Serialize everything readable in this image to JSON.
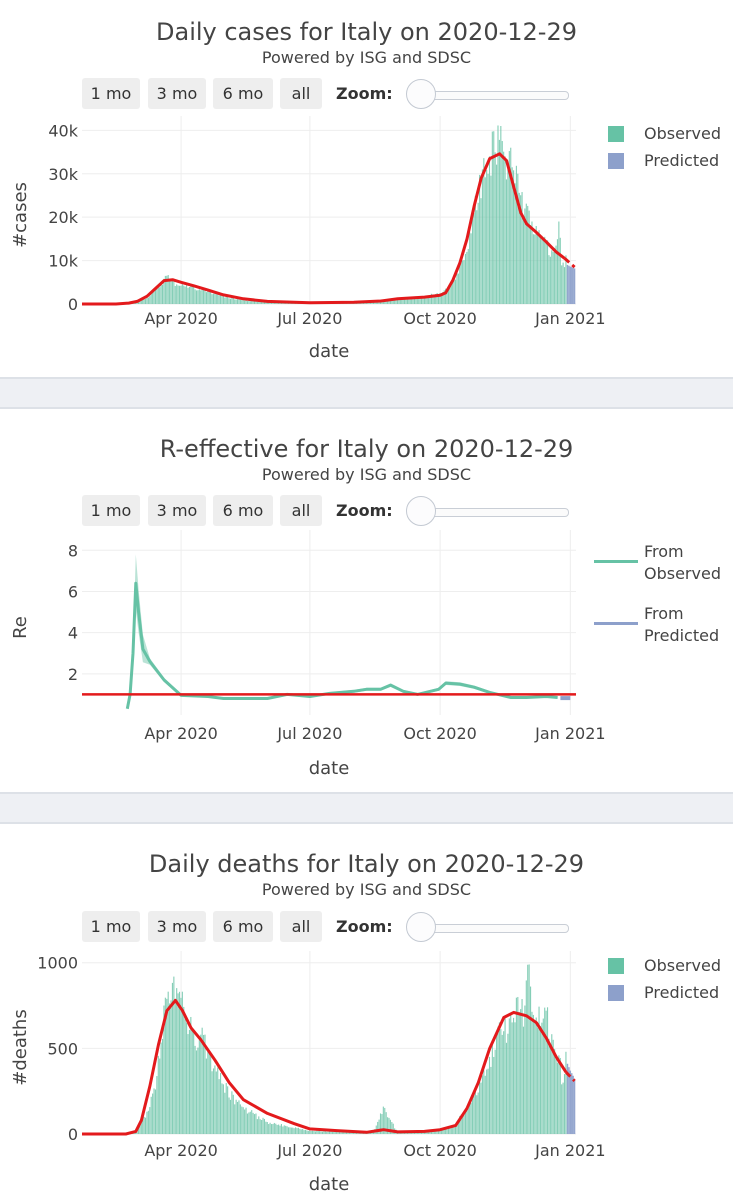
{
  "rangeselector": {
    "buttons": [
      "1 mo",
      "3 mo",
      "6 mo",
      "all"
    ],
    "zoom_label": "Zoom:"
  },
  "colors": {
    "observed": "#66c2a5",
    "predicted": "#8da0cb",
    "fit_line": "#e31a1c",
    "grid": "#eeeeee",
    "baseline": "#e31a1c"
  },
  "panels": [
    {
      "title": "Daily cases for Italy on 2020-12-29",
      "subtitle": "Powered by ISG and SDSC",
      "legend": [
        "Observed",
        "Predicted"
      ],
      "chart_data": {
        "type": "bar",
        "xlabel": "date",
        "ylabel": "#cases",
        "x_tick_labels": [
          "Apr 2020",
          "Jul 2020",
          "Oct 2020",
          "Jan 2021"
        ],
        "x_ticks": [
          "2020-04-01",
          "2020-07-01",
          "2020-10-01",
          "2021-01-01"
        ],
        "y_tick_labels": [
          "0",
          "10k",
          "20k",
          "30k",
          "40k"
        ],
        "y_ticks": [
          0,
          10000,
          20000,
          30000,
          40000
        ],
        "ylim": [
          0,
          41000
        ],
        "x_range": [
          "2020-01-22",
          "2021-01-05"
        ],
        "observed_end": "2020-12-29",
        "observed": [
          [
            "2020-02-20",
            0
          ],
          [
            "2020-03-01",
            500
          ],
          [
            "2020-03-10",
            1800
          ],
          [
            "2020-03-15",
            3500
          ],
          [
            "2020-03-20",
            5800
          ],
          [
            "2020-03-22",
            6500
          ],
          [
            "2020-03-25",
            5500
          ],
          [
            "2020-03-31",
            4200
          ],
          [
            "2020-04-10",
            4000
          ],
          [
            "2020-04-20",
            3000
          ],
          [
            "2020-05-01",
            1800
          ],
          [
            "2020-05-15",
            900
          ],
          [
            "2020-06-01",
            400
          ],
          [
            "2020-07-01",
            200
          ],
          [
            "2020-08-01",
            300
          ],
          [
            "2020-08-20",
            800
          ],
          [
            "2020-09-01",
            1400
          ],
          [
            "2020-09-15",
            1600
          ],
          [
            "2020-10-01",
            2500
          ],
          [
            "2020-10-10",
            5000
          ],
          [
            "2020-10-15",
            8800
          ],
          [
            "2020-10-20",
            12000
          ],
          [
            "2020-10-25",
            21000
          ],
          [
            "2020-10-31",
            31000
          ],
          [
            "2020-11-05",
            34000
          ],
          [
            "2020-11-08",
            39800
          ],
          [
            "2020-11-12",
            37800
          ],
          [
            "2020-11-13",
            41000
          ],
          [
            "2020-11-16",
            34000
          ],
          [
            "2020-11-20",
            36000
          ],
          [
            "2020-11-25",
            30000
          ],
          [
            "2020-11-30",
            22000
          ],
          [
            "2020-12-05",
            19000
          ],
          [
            "2020-12-10",
            17000
          ],
          [
            "2020-12-15",
            14000
          ],
          [
            "2020-12-20",
            12000
          ],
          [
            "2020-12-24",
            19000
          ],
          [
            "2020-12-26",
            8900
          ],
          [
            "2020-12-28",
            8500
          ],
          [
            "2020-12-29",
            11200
          ]
        ],
        "predicted": [
          [
            "2020-12-30",
            9000
          ],
          [
            "2020-12-31",
            8800
          ],
          [
            "2021-01-01",
            8600
          ],
          [
            "2021-01-02",
            8500
          ],
          [
            "2021-01-03",
            8300
          ],
          [
            "2021-01-04",
            8200
          ]
        ],
        "fit_line": [
          [
            "2020-01-22",
            0
          ],
          [
            "2020-02-15",
            0
          ],
          [
            "2020-02-24",
            200
          ],
          [
            "2020-03-01",
            600
          ],
          [
            "2020-03-08",
            1800
          ],
          [
            "2020-03-14",
            3600
          ],
          [
            "2020-03-20",
            5400
          ],
          [
            "2020-03-26",
            5600
          ],
          [
            "2020-04-01",
            5000
          ],
          [
            "2020-04-10",
            4200
          ],
          [
            "2020-04-20",
            3200
          ],
          [
            "2020-05-01",
            2100
          ],
          [
            "2020-05-15",
            1200
          ],
          [
            "2020-06-01",
            600
          ],
          [
            "2020-07-01",
            300
          ],
          [
            "2020-08-01",
            400
          ],
          [
            "2020-08-20",
            700
          ],
          [
            "2020-09-01",
            1200
          ],
          [
            "2020-09-20",
            1600
          ],
          [
            "2020-10-01",
            2000
          ],
          [
            "2020-10-05",
            2600
          ],
          [
            "2020-10-10",
            5500
          ],
          [
            "2020-10-15",
            9500
          ],
          [
            "2020-10-20",
            15000
          ],
          [
            "2020-10-25",
            22500
          ],
          [
            "2020-10-30",
            29000
          ],
          [
            "2020-11-05",
            33500
          ],
          [
            "2020-11-12",
            34600
          ],
          [
            "2020-11-17",
            33000
          ],
          [
            "2020-11-22",
            27000
          ],
          [
            "2020-11-27",
            21000
          ],
          [
            "2020-12-01",
            18500
          ],
          [
            "2020-12-08",
            16500
          ],
          [
            "2020-12-15",
            14300
          ],
          [
            "2020-12-22",
            12000
          ],
          [
            "2020-12-28",
            10500
          ]
        ],
        "predicted_line": [
          [
            "2020-12-28",
            10500
          ],
          [
            "2021-01-04",
            8500
          ]
        ]
      }
    },
    {
      "title": "R-effective for Italy on 2020-12-29",
      "subtitle": "Powered by ISG and SDSC",
      "legend": [
        "From Observed",
        "From Predicted"
      ],
      "chart_data": {
        "type": "line",
        "xlabel": "date",
        "ylabel": "Re",
        "x_tick_labels": [
          "Apr 2020",
          "Jul 2020",
          "Oct 2020",
          "Jan 2021"
        ],
        "x_ticks": [
          "2020-04-01",
          "2020-07-01",
          "2020-10-01",
          "2021-01-01"
        ],
        "y_tick_labels": [
          "2",
          "4",
          "6",
          "8"
        ],
        "y_ticks": [
          2,
          4,
          6,
          8
        ],
        "ylim": [
          0,
          8.5
        ],
        "baseline": 1,
        "x_range": [
          "2020-01-22",
          "2021-01-05"
        ],
        "series": [
          {
            "name": "From Observed",
            "values": [
              [
                "2020-02-23",
                0.3
              ],
              [
                "2020-02-25",
                1.0
              ],
              [
                "2020-02-27",
                3.0
              ],
              [
                "2020-02-29",
                6.4
              ],
              [
                "2020-03-02",
                5.0
              ],
              [
                "2020-03-05",
                3.2
              ],
              [
                "2020-03-10",
                2.6
              ],
              [
                "2020-03-20",
                1.7
              ],
              [
                "2020-04-01",
                0.95
              ],
              [
                "2020-04-20",
                0.9
              ],
              [
                "2020-05-01",
                0.8
              ],
              [
                "2020-06-01",
                0.8
              ],
              [
                "2020-06-15",
                1.0
              ],
              [
                "2020-07-01",
                0.9
              ],
              [
                "2020-07-15",
                1.05
              ],
              [
                "2020-08-01",
                1.15
              ],
              [
                "2020-08-10",
                1.25
              ],
              [
                "2020-08-20",
                1.25
              ],
              [
                "2020-08-27",
                1.45
              ],
              [
                "2020-09-05",
                1.15
              ],
              [
                "2020-09-15",
                1.0
              ],
              [
                "2020-09-30",
                1.25
              ],
              [
                "2020-10-05",
                1.55
              ],
              [
                "2020-10-15",
                1.5
              ],
              [
                "2020-10-25",
                1.35
              ],
              [
                "2020-11-05",
                1.1
              ],
              [
                "2020-11-20",
                0.85
              ],
              [
                "2020-12-01",
                0.85
              ],
              [
                "2020-12-15",
                0.9
              ],
              [
                "2020-12-23",
                0.85
              ]
            ]
          },
          {
            "name": "From Predicted",
            "values": [
              [
                "2020-12-25",
                0.82
              ],
              [
                "2021-01-01",
                0.82
              ]
            ]
          }
        ]
      }
    },
    {
      "title": "Daily deaths for Italy on 2020-12-29",
      "subtitle": "Powered by ISG and SDSC",
      "legend": [
        "Observed",
        "Predicted"
      ],
      "chart_data": {
        "type": "bar",
        "xlabel": "date",
        "ylabel": "#deaths",
        "x_tick_labels": [
          "Apr 2020",
          "Jul 2020",
          "Oct 2020",
          "Jan 2021"
        ],
        "x_ticks": [
          "2020-04-01",
          "2020-07-01",
          "2020-10-01",
          "2021-01-01"
        ],
        "y_tick_labels": [
          "0",
          "500",
          "1000"
        ],
        "y_ticks": [
          0,
          500,
          1000
        ],
        "ylim": [
          0,
          1010
        ],
        "x_range": [
          "2020-01-22",
          "2021-01-05"
        ],
        "observed_end": "2020-12-29",
        "observed": [
          [
            "2020-02-25",
            0
          ],
          [
            "2020-03-01",
            20
          ],
          [
            "2020-03-08",
            130
          ],
          [
            "2020-03-14",
            260
          ],
          [
            "2020-03-20",
            750
          ],
          [
            "2020-03-25",
            780
          ],
          [
            "2020-03-27",
            919
          ],
          [
            "2020-03-31",
            830
          ],
          [
            "2020-04-05",
            650
          ],
          [
            "2020-04-10",
            600
          ],
          [
            "2020-04-15",
            580
          ],
          [
            "2020-04-20",
            480
          ],
          [
            "2020-04-25",
            400
          ],
          [
            "2020-05-01",
            290
          ],
          [
            "2020-05-10",
            200
          ],
          [
            "2020-05-20",
            130
          ],
          [
            "2020-06-01",
            70
          ],
          [
            "2020-06-15",
            45
          ],
          [
            "2020-07-01",
            20
          ],
          [
            "2020-07-20",
            12
          ],
          [
            "2020-08-01",
            8
          ],
          [
            "2020-08-15",
            10
          ],
          [
            "2020-08-22",
            160
          ],
          [
            "2020-09-01",
            10
          ],
          [
            "2020-09-15",
            15
          ],
          [
            "2020-10-01",
            25
          ],
          [
            "2020-10-10",
            40
          ],
          [
            "2020-10-20",
            150
          ],
          [
            "2020-10-30",
            300
          ],
          [
            "2020-11-05",
            450
          ],
          [
            "2020-11-10",
            580
          ],
          [
            "2020-11-15",
            600
          ],
          [
            "2020-11-20",
            700
          ],
          [
            "2020-11-25",
            800
          ],
          [
            "2020-11-30",
            750
          ],
          [
            "2020-12-03",
            990
          ],
          [
            "2020-12-08",
            680
          ],
          [
            "2020-12-12",
            650
          ],
          [
            "2020-12-15",
            720
          ],
          [
            "2020-12-20",
            550
          ],
          [
            "2020-12-24",
            459
          ],
          [
            "2020-12-27",
            300
          ],
          [
            "2020-12-29",
            480
          ]
        ],
        "predicted": [
          [
            "2020-12-30",
            410
          ],
          [
            "2020-12-31",
            390
          ],
          [
            "2021-01-01",
            370
          ],
          [
            "2021-01-02",
            355
          ],
          [
            "2021-01-03",
            340
          ],
          [
            "2021-01-04",
            320
          ]
        ],
        "fit_line": [
          [
            "2020-01-22",
            0
          ],
          [
            "2020-02-22",
            0
          ],
          [
            "2020-02-29",
            15
          ],
          [
            "2020-03-04",
            80
          ],
          [
            "2020-03-10",
            280
          ],
          [
            "2020-03-16",
            520
          ],
          [
            "2020-03-22",
            720
          ],
          [
            "2020-03-28",
            780
          ],
          [
            "2020-04-02",
            720
          ],
          [
            "2020-04-08",
            620
          ],
          [
            "2020-04-15",
            550
          ],
          [
            "2020-04-25",
            430
          ],
          [
            "2020-05-05",
            300
          ],
          [
            "2020-05-15",
            200
          ],
          [
            "2020-06-01",
            120
          ],
          [
            "2020-06-20",
            60
          ],
          [
            "2020-07-01",
            30
          ],
          [
            "2020-07-20",
            20
          ],
          [
            "2020-08-10",
            10
          ],
          [
            "2020-08-22",
            25
          ],
          [
            "2020-09-01",
            12
          ],
          [
            "2020-09-20",
            15
          ],
          [
            "2020-10-01",
            25
          ],
          [
            "2020-10-12",
            50
          ],
          [
            "2020-10-20",
            150
          ],
          [
            "2020-10-28",
            300
          ],
          [
            "2020-11-05",
            500
          ],
          [
            "2020-11-15",
            680
          ],
          [
            "2020-11-22",
            710
          ],
          [
            "2020-12-01",
            690
          ],
          [
            "2020-12-08",
            650
          ],
          [
            "2020-12-15",
            560
          ],
          [
            "2020-12-22",
            450
          ],
          [
            "2020-12-29",
            360
          ]
        ],
        "predicted_line": [
          [
            "2020-12-29",
            360
          ],
          [
            "2021-01-04",
            310
          ]
        ]
      }
    }
  ]
}
